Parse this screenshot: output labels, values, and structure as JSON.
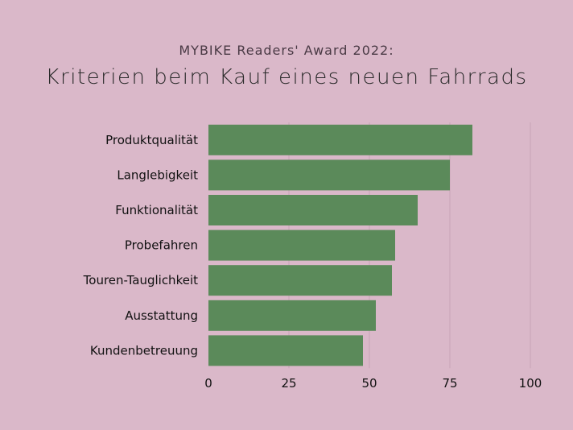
{
  "subtitle": "MYBIKE Readers' Award 2022:",
  "title": "Kriterien beim Kauf eines neuen Fahrrads",
  "colors": {
    "background": "#dab8c9",
    "bar": "#5b8a5a",
    "grid": "#c8a5b6"
  },
  "chart_data": {
    "type": "bar",
    "orientation": "horizontal",
    "title": "Kriterien beim Kauf eines neuen Fahrrads",
    "subtitle": "MYBIKE Readers' Award 2022:",
    "categories": [
      "Produktqualität",
      "Langlebigkeit",
      "Funktionalität",
      "Probefahren",
      "Touren-Tauglichkeit",
      "Ausstattung",
      "Kundenbetreuung"
    ],
    "values": [
      82,
      75,
      65,
      58,
      57,
      52,
      48
    ],
    "xlim": [
      0,
      100
    ],
    "xticks": [
      "0",
      "25",
      "50",
      "75",
      "100"
    ],
    "xlabel": "",
    "ylabel": "",
    "grid": "vertical"
  }
}
